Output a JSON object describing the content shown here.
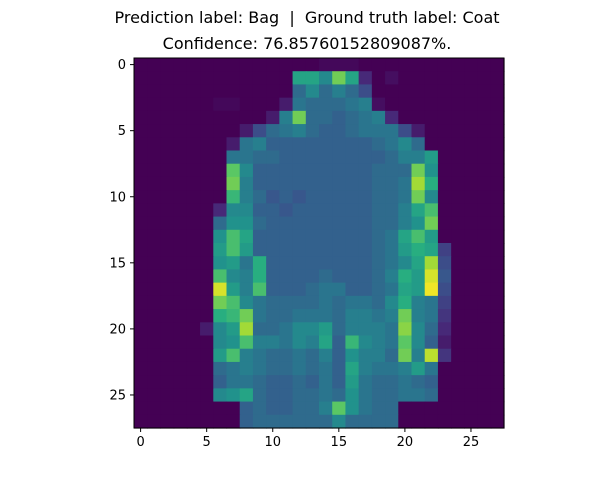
{
  "title_line1": "Prediction label: Bag  |  Ground truth label: Coat",
  "title_line2": "Confidence: 76.85760152809087%.",
  "chart_data": {
    "type": "heatmap",
    "title": "Prediction label: Bag  |  Ground truth label: Coat\nConfidence: 76.85760152809087%.",
    "colormap": "viridis",
    "value_range": [
      0,
      255
    ],
    "rows": 28,
    "cols": 28,
    "xticks": [
      0,
      5,
      10,
      15,
      20,
      25
    ],
    "yticks": [
      0,
      5,
      10,
      15,
      20,
      25
    ],
    "xlim": [
      -0.5,
      27.5
    ],
    "ylim": [
      27.5,
      -0.5
    ],
    "grid": false,
    "values": [
      [
        0,
        0,
        0,
        0,
        0,
        0,
        0,
        0,
        0,
        0,
        0,
        0,
        0,
        0,
        5,
        5,
        5,
        0,
        0,
        0,
        0,
        0,
        0,
        0,
        0,
        0,
        0,
        0
      ],
      [
        0,
        0,
        0,
        0,
        0,
        0,
        0,
        0,
        0,
        0,
        0,
        0,
        150,
        150,
        120,
        200,
        150,
        30,
        0,
        10,
        0,
        0,
        0,
        0,
        0,
        0,
        0,
        0
      ],
      [
        0,
        0,
        0,
        0,
        0,
        0,
        0,
        0,
        0,
        0,
        0,
        0,
        90,
        120,
        90,
        110,
        90,
        60,
        0,
        0,
        0,
        0,
        0,
        0,
        0,
        0,
        0,
        0
      ],
      [
        0,
        0,
        0,
        0,
        0,
        0,
        5,
        5,
        0,
        0,
        0,
        20,
        100,
        90,
        90,
        90,
        100,
        110,
        10,
        0,
        0,
        0,
        0,
        0,
        0,
        0,
        0,
        0
      ],
      [
        0,
        0,
        0,
        0,
        0,
        0,
        0,
        0,
        0,
        0,
        20,
        110,
        200,
        90,
        90,
        80,
        90,
        100,
        110,
        30,
        0,
        0,
        0,
        0,
        0,
        0,
        0,
        0
      ],
      [
        0,
        0,
        0,
        0,
        0,
        0,
        0,
        0,
        20,
        60,
        90,
        100,
        110,
        90,
        80,
        80,
        90,
        100,
        100,
        100,
        60,
        20,
        0,
        0,
        0,
        0,
        0,
        0
      ],
      [
        0,
        0,
        0,
        0,
        0,
        0,
        0,
        20,
        100,
        110,
        80,
        80,
        80,
        80,
        80,
        80,
        80,
        80,
        90,
        100,
        120,
        90,
        0,
        0,
        0,
        0,
        0,
        0
      ],
      [
        0,
        0,
        0,
        0,
        0,
        0,
        0,
        100,
        100,
        90,
        90,
        80,
        80,
        80,
        80,
        80,
        80,
        80,
        80,
        90,
        110,
        110,
        140,
        0,
        0,
        0,
        0,
        0
      ],
      [
        0,
        0,
        0,
        0,
        0,
        0,
        0,
        190,
        120,
        80,
        80,
        80,
        80,
        80,
        80,
        80,
        80,
        80,
        90,
        90,
        90,
        200,
        130,
        0,
        0,
        0,
        0,
        0
      ],
      [
        0,
        0,
        0,
        0,
        0,
        0,
        0,
        200,
        110,
        80,
        80,
        80,
        80,
        80,
        80,
        80,
        80,
        80,
        90,
        90,
        100,
        220,
        160,
        0,
        0,
        0,
        0,
        0
      ],
      [
        0,
        0,
        0,
        0,
        0,
        0,
        0,
        170,
        110,
        90,
        70,
        80,
        70,
        80,
        80,
        80,
        80,
        80,
        90,
        90,
        100,
        200,
        120,
        0,
        0,
        0,
        0,
        0
      ],
      [
        0,
        0,
        0,
        0,
        0,
        0,
        30,
        120,
        120,
        80,
        80,
        70,
        80,
        80,
        80,
        80,
        80,
        80,
        90,
        90,
        110,
        150,
        180,
        0,
        0,
        0,
        0,
        0
      ],
      [
        0,
        0,
        0,
        0,
        0,
        0,
        90,
        130,
        130,
        90,
        80,
        80,
        80,
        80,
        80,
        80,
        80,
        80,
        90,
        90,
        110,
        130,
        200,
        0,
        0,
        0,
        0,
        0
      ],
      [
        0,
        0,
        0,
        0,
        0,
        0,
        130,
        180,
        150,
        80,
        80,
        80,
        80,
        80,
        80,
        80,
        80,
        80,
        90,
        100,
        150,
        180,
        140,
        0,
        0,
        0,
        0,
        0
      ],
      [
        0,
        0,
        0,
        0,
        0,
        0,
        140,
        180,
        140,
        80,
        80,
        80,
        80,
        80,
        80,
        80,
        80,
        80,
        90,
        100,
        140,
        160,
        150,
        50,
        0,
        0,
        0,
        0
      ],
      [
        0,
        0,
        0,
        0,
        0,
        0,
        130,
        140,
        100,
        160,
        80,
        80,
        80,
        80,
        80,
        80,
        80,
        80,
        90,
        100,
        120,
        150,
        220,
        60,
        0,
        0,
        0,
        0
      ],
      [
        0,
        0,
        0,
        0,
        0,
        0,
        180,
        120,
        110,
        160,
        80,
        80,
        80,
        80,
        90,
        80,
        80,
        80,
        90,
        110,
        160,
        140,
        240,
        70,
        0,
        0,
        0,
        0
      ],
      [
        0,
        0,
        0,
        0,
        0,
        0,
        240,
        140,
        110,
        180,
        80,
        80,
        80,
        90,
        100,
        100,
        80,
        80,
        90,
        100,
        150,
        140,
        250,
        60,
        0,
        0,
        0,
        0
      ],
      [
        0,
        0,
        0,
        0,
        0,
        0,
        200,
        180,
        120,
        100,
        90,
        90,
        90,
        90,
        100,
        90,
        100,
        100,
        90,
        120,
        160,
        110,
        100,
        50,
        0,
        0,
        0,
        0
      ],
      [
        0,
        0,
        0,
        0,
        0,
        0,
        160,
        170,
        200,
        100,
        90,
        90,
        100,
        100,
        100,
        90,
        110,
        110,
        100,
        110,
        200,
        110,
        100,
        40,
        0,
        0,
        0,
        0
      ],
      [
        0,
        0,
        0,
        0,
        0,
        20,
        120,
        140,
        220,
        90,
        90,
        100,
        120,
        120,
        140,
        90,
        110,
        110,
        110,
        100,
        210,
        120,
        90,
        30,
        0,
        0,
        0,
        0
      ],
      [
        0,
        0,
        0,
        0,
        0,
        0,
        120,
        130,
        180,
        110,
        110,
        100,
        120,
        110,
        150,
        80,
        170,
        120,
        110,
        100,
        190,
        120,
        80,
        20,
        0,
        0,
        0,
        0
      ],
      [
        0,
        0,
        0,
        0,
        0,
        0,
        140,
        180,
        110,
        100,
        90,
        90,
        100,
        90,
        110,
        80,
        130,
        110,
        110,
        90,
        200,
        110,
        230,
        40,
        0,
        0,
        0,
        0
      ],
      [
        0,
        0,
        0,
        0,
        0,
        0,
        90,
        100,
        110,
        100,
        90,
        90,
        100,
        90,
        100,
        80,
        150,
        110,
        100,
        100,
        110,
        140,
        100,
        0,
        0,
        0,
        0,
        0
      ],
      [
        0,
        0,
        0,
        0,
        0,
        0,
        80,
        100,
        100,
        90,
        80,
        80,
        90,
        80,
        100,
        80,
        140,
        100,
        90,
        90,
        100,
        90,
        80,
        0,
        0,
        0,
        0,
        0
      ],
      [
        0,
        0,
        0,
        0,
        0,
        0,
        120,
        130,
        150,
        90,
        80,
        80,
        90,
        90,
        100,
        90,
        130,
        100,
        90,
        90,
        100,
        100,
        90,
        0,
        0,
        0,
        0,
        0
      ],
      [
        0,
        0,
        0,
        0,
        0,
        0,
        0,
        0,
        80,
        90,
        80,
        80,
        90,
        90,
        110,
        190,
        130,
        100,
        90,
        90,
        0,
        0,
        0,
        0,
        0,
        0,
        0,
        0
      ],
      [
        0,
        0,
        0,
        0,
        0,
        0,
        0,
        0,
        80,
        90,
        90,
        90,
        90,
        90,
        90,
        120,
        90,
        90,
        90,
        90,
        0,
        0,
        0,
        0,
        0,
        0,
        0,
        0
      ]
    ]
  }
}
